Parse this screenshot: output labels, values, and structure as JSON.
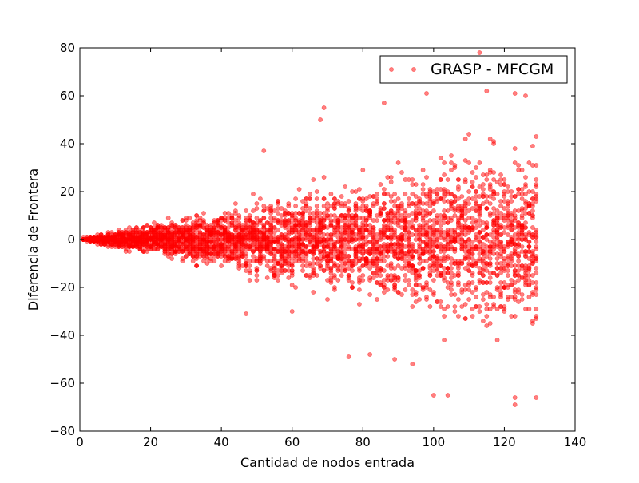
{
  "chart_data": {
    "type": "scatter",
    "title": "",
    "xlabel": "Cantidad de nodos entrada",
    "ylabel": "Diferencia de Frontera",
    "xlim": [
      0,
      140
    ],
    "ylim": [
      -80,
      80
    ],
    "xticks": [
      0,
      20,
      40,
      60,
      80,
      100,
      120,
      140
    ],
    "xtick_labels": [
      "0",
      "20",
      "40",
      "60",
      "80",
      "100",
      "120",
      "140"
    ],
    "yticks": [
      -80,
      -60,
      -40,
      -20,
      0,
      20,
      40,
      60,
      80
    ],
    "ytick_labels": [
      "−80",
      "−60",
      "−40",
      "−20",
      "0",
      "20",
      "40",
      "60",
      "80"
    ],
    "grid": false,
    "legend_location": "upper right",
    "marker_color": "#ff0000",
    "marker_alpha": 0.5,
    "series": [
      {
        "name": "GRASP - MFCGM",
        "generator": "integer x from 1 to 129, about 30 samples per x, y spread growing linearly with x",
        "spread_envelope": {
          "x": [
            1,
            129
          ],
          "y_halfwidth": [
            1,
            70
          ]
        },
        "points": [
          {
            "x": 113,
            "y": 78
          },
          {
            "x": 115,
            "y": 62
          },
          {
            "x": 123,
            "y": 61
          },
          {
            "x": 126,
            "y": 60
          },
          {
            "x": 98,
            "y": 61
          },
          {
            "x": 69,
            "y": 55
          },
          {
            "x": 86,
            "y": 57
          },
          {
            "x": 52,
            "y": 37
          },
          {
            "x": 68,
            "y": 50
          },
          {
            "x": 100,
            "y": -65
          },
          {
            "x": 104,
            "y": -65
          },
          {
            "x": 123,
            "y": -66
          },
          {
            "x": 123,
            "y": -69
          },
          {
            "x": 129,
            "y": -66
          },
          {
            "x": 89,
            "y": -50
          },
          {
            "x": 94,
            "y": -52
          },
          {
            "x": 76,
            "y": -49
          },
          {
            "x": 82,
            "y": -48
          },
          {
            "x": 47,
            "y": -31
          },
          {
            "x": 60,
            "y": -30
          }
        ]
      }
    ]
  }
}
